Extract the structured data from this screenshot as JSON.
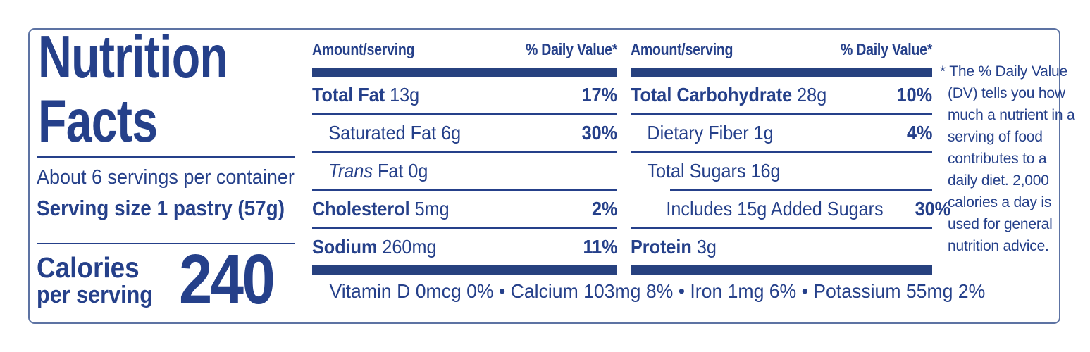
{
  "colors": {
    "ink": "#25408a",
    "bar": "#27417f",
    "border": "#5d73a3",
    "background": "#ffffff"
  },
  "title": {
    "line1": "Nutrition",
    "line2": "Facts"
  },
  "serving": {
    "per_container": "About 6 servings per container",
    "size": "Serving size 1 pastry (57g)"
  },
  "calories": {
    "label_line1": "Calories",
    "label_line2": "per serving",
    "value": "240"
  },
  "columns": [
    {
      "header_amount": "Amount/serving",
      "header_dv": "% Daily Value*",
      "rows": [
        {
          "bold": "Total Fat",
          "rest": " 13g",
          "dv": "17%"
        },
        {
          "rest": "Saturated Fat 6g",
          "dv": "30%"
        },
        {
          "italic": "Trans",
          "rest": " Fat 0g",
          "dv": ""
        },
        {
          "bold": "Cholesterol",
          "rest": " 5mg",
          "dv": "2%"
        },
        {
          "bold": "Sodium",
          "rest": " 260mg",
          "dv": "11%"
        }
      ]
    },
    {
      "header_amount": "Amount/serving",
      "header_dv": "% Daily Value*",
      "rows": [
        {
          "bold": "Total Carbohydrate",
          "rest": " 28g",
          "dv": "10%"
        },
        {
          "rest": "Dietary Fiber 1g",
          "dv": "4%"
        },
        {
          "rest": "Total Sugars 16g",
          "dv": ""
        },
        {
          "rest": "Includes 15g Added Sugars",
          "dv": "30%"
        },
        {
          "bold": "Protein",
          "rest": " 3g",
          "dv": ""
        }
      ]
    }
  ],
  "micronutrients": "Vitamin D 0mcg 0% • Calcium 103mg 8% • Iron 1mg 6% • Potassium 55mg 2%",
  "footnote": "* The % Daily Value (DV) tells you how much a nutrient in a serving of food contributes to a daily diet. 2,000 calories a day is used for general nutrition advice."
}
